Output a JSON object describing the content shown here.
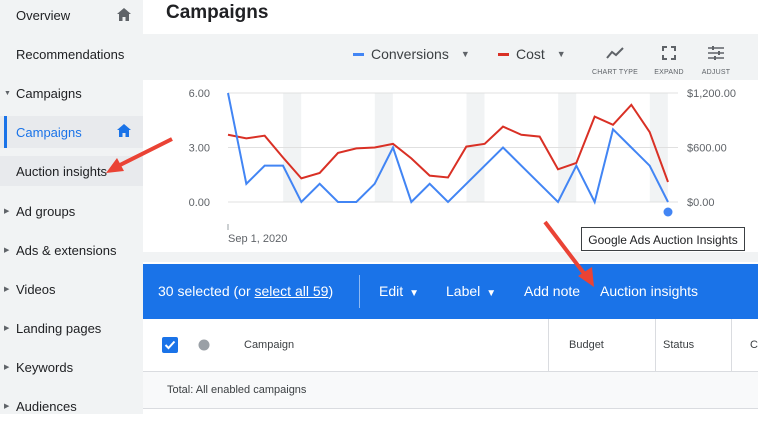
{
  "sidebar": {
    "items": [
      {
        "label": "Overview",
        "top": 0
      },
      {
        "label": "Recommendations"
      },
      {
        "label": "Campaigns"
      },
      {
        "label": "Campaigns"
      },
      {
        "label": "Auction insights"
      },
      {
        "label": "Ad groups"
      },
      {
        "label": "Ads & extensions"
      },
      {
        "label": "Videos"
      },
      {
        "label": "Landing pages"
      },
      {
        "label": "Keywords"
      },
      {
        "label": "Audiences"
      }
    ]
  },
  "main": {
    "title": "Campaigns",
    "legend": {
      "series1": "Conversions",
      "series2": "Cost",
      "series1_color": "#4285f4",
      "series2_color": "#d93025"
    },
    "tools": {
      "chart_type": "CHART TYPE",
      "expand": "EXPAND",
      "adjust": "ADJUST"
    },
    "tooltip": "Google Ads Auction Insights"
  },
  "chart_data": {
    "type": "line",
    "x_label": "Sep 1, 2020",
    "left_ticks": [
      "6.00",
      "3.00",
      "0.00"
    ],
    "right_ticks": [
      "$1,200.00",
      "$600.00",
      "$0.00"
    ],
    "y_left_range": [
      0,
      6
    ],
    "y_right_range": [
      0,
      1200
    ],
    "series": [
      {
        "name": "Conversions",
        "color": "#4285f4",
        "values": [
          6,
          1,
          2,
          2,
          0,
          1,
          0,
          0,
          1,
          3,
          0,
          1,
          0,
          1,
          2,
          3,
          2,
          1,
          0,
          2,
          0,
          4,
          3,
          2,
          0
        ]
      },
      {
        "name": "Cost",
        "color": "#d93025",
        "values": [
          740,
          700,
          730,
          490,
          260,
          320,
          540,
          590,
          600,
          640,
          480,
          290,
          270,
          610,
          640,
          830,
          740,
          720,
          360,
          430,
          940,
          850,
          1070,
          770,
          220
        ]
      }
    ]
  },
  "toolbar": {
    "selected_prefix": "30 selected (or ",
    "select_all": "select all 59",
    "selected_suffix": ")",
    "edit": "Edit",
    "label": "Label",
    "add_note": "Add note",
    "auction_insights": "Auction insights"
  },
  "table": {
    "headers": {
      "campaign": "Campaign",
      "budget": "Budget",
      "status": "Status",
      "next": "C"
    },
    "total_row": "Total: All enabled campaigns"
  },
  "annotations": {
    "arrow_color": "#ea4335"
  }
}
